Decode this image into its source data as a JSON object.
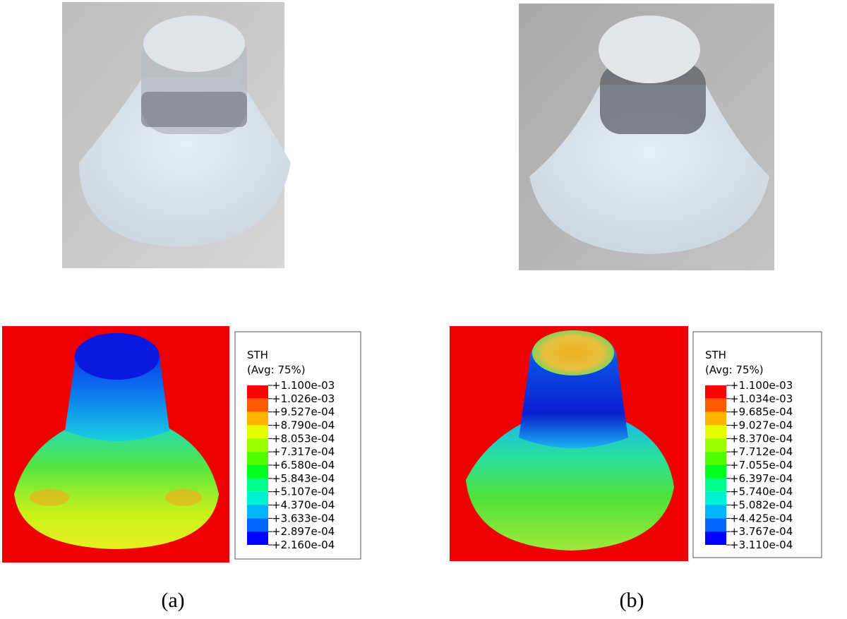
{
  "panels": [
    {
      "caption": "(a)",
      "legend": {
        "title": "STH",
        "subtitle": "(Avg: 75%)",
        "levels": [
          "+1.100e-03",
          "+1.026e-03",
          "+9.527e-04",
          "+8.790e-04",
          "+8.053e-04",
          "+7.317e-04",
          "+6.580e-04",
          "+5.843e-04",
          "+5.107e-04",
          "+4.370e-04",
          "+3.633e-04",
          "+2.897e-04",
          "+2.160e-04"
        ]
      }
    },
    {
      "caption": "(b)",
      "legend": {
        "title": "STH",
        "subtitle": "(Avg: 75%)",
        "levels": [
          "+1.100e-03",
          "+1.034e-03",
          "+9.685e-04",
          "+9.027e-04",
          "+8.370e-04",
          "+7.712e-04",
          "+7.055e-04",
          "+6.397e-04",
          "+5.740e-04",
          "+5.082e-04",
          "+4.425e-04",
          "+3.767e-04",
          "+3.110e-04"
        ]
      }
    }
  ]
}
